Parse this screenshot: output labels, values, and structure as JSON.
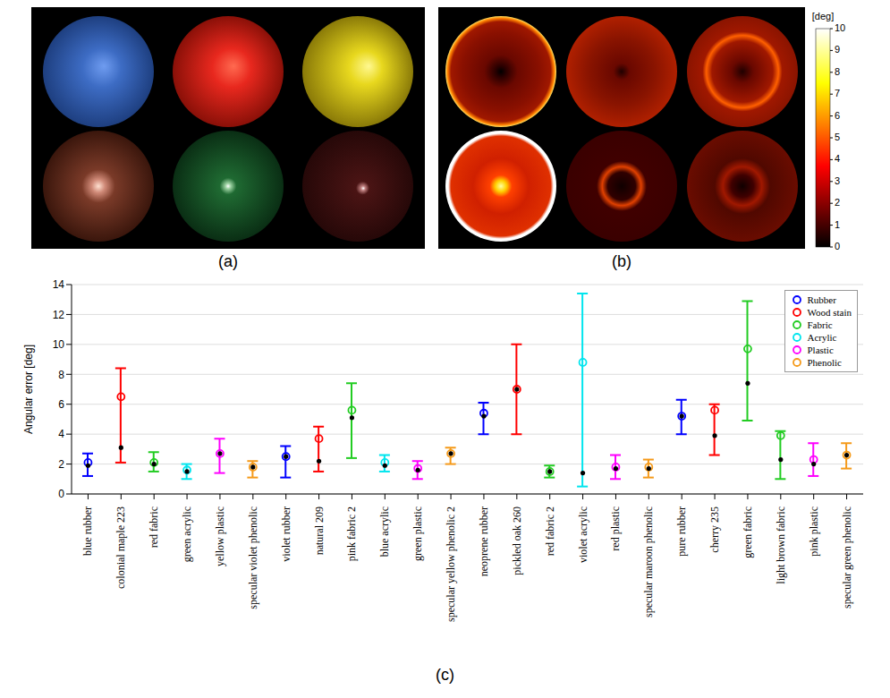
{
  "panel_labels": [
    "(a)",
    "(b)",
    "(c)"
  ],
  "colorbar": {
    "title": "[deg]",
    "range": [
      0,
      10
    ],
    "ticks": [
      0,
      1,
      2,
      3,
      4,
      5,
      6,
      7,
      8,
      9,
      10
    ]
  },
  "chart_data": {
    "type": "scatter",
    "y_label": "Angular error [deg]",
    "categories": [
      "blue rubber",
      "colonial maple 223",
      "red fabric",
      "green acrylic",
      "yellow plastic",
      "specular violet phenolic",
      "violet rubber",
      "natural 209",
      "pink fabric 2",
      "blue acrylic",
      "green plastic",
      "specular yellow phenolic 2",
      "neoprene rubber",
      "pickled oak 260",
      "red fabric 2",
      "violet acrylic",
      "red plastic",
      "specular maroon phenolic",
      "pure rubber",
      "cherry 235",
      "green fabric",
      "light brown fabric",
      "pink plastic",
      "specular green phenolic"
    ],
    "ylim": [
      0,
      14
    ],
    "yticks": [
      0,
      2,
      4,
      6,
      8,
      10,
      12,
      14
    ],
    "grid": true,
    "legend": "top-right",
    "series": [
      {
        "name": "Rubber",
        "color": "#0000ff",
        "values": [
          2.1,
          null,
          null,
          null,
          null,
          null,
          2.5,
          null,
          null,
          null,
          null,
          null,
          5.4,
          null,
          null,
          null,
          null,
          null,
          5.2,
          null,
          null,
          null,
          null,
          null
        ],
        "dot_values": [
          1.9,
          null,
          null,
          null,
          null,
          null,
          2.5,
          null,
          null,
          null,
          null,
          null,
          5.2,
          null,
          null,
          null,
          null,
          null,
          5.2,
          null,
          null,
          null,
          null,
          null
        ],
        "lows": [
          1.2,
          null,
          null,
          null,
          null,
          null,
          1.1,
          null,
          null,
          null,
          null,
          null,
          4.0,
          null,
          null,
          null,
          null,
          null,
          4.0,
          null,
          null,
          null,
          null,
          null
        ],
        "highs": [
          2.7,
          null,
          null,
          null,
          null,
          null,
          3.2,
          null,
          null,
          null,
          null,
          null,
          6.1,
          null,
          null,
          null,
          null,
          null,
          6.3,
          null,
          null,
          null,
          null,
          null
        ]
      },
      {
        "name": "Wood stain",
        "color": "#ff0000",
        "values": [
          null,
          6.5,
          null,
          null,
          null,
          null,
          null,
          3.7,
          null,
          null,
          null,
          null,
          null,
          7.0,
          null,
          null,
          null,
          null,
          null,
          5.6,
          null,
          null,
          null,
          null
        ],
        "dot_values": [
          null,
          3.1,
          null,
          null,
          null,
          null,
          null,
          2.2,
          null,
          null,
          null,
          null,
          null,
          7.0,
          null,
          null,
          null,
          null,
          null,
          3.9,
          null,
          null,
          null,
          null
        ],
        "lows": [
          null,
          2.1,
          null,
          null,
          null,
          null,
          null,
          1.5,
          null,
          null,
          null,
          null,
          null,
          4.0,
          null,
          null,
          null,
          null,
          null,
          2.6,
          null,
          null,
          null,
          null
        ],
        "highs": [
          null,
          8.4,
          null,
          null,
          null,
          null,
          null,
          4.5,
          null,
          null,
          null,
          null,
          null,
          10.0,
          null,
          null,
          null,
          null,
          null,
          6.0,
          null,
          null,
          null,
          null
        ]
      },
      {
        "name": "Fabric",
        "color": "#22cc22",
        "values": [
          null,
          null,
          2.1,
          null,
          null,
          null,
          null,
          null,
          5.6,
          null,
          null,
          null,
          null,
          null,
          1.5,
          null,
          null,
          null,
          null,
          null,
          9.7,
          3.9,
          null,
          null
        ],
        "dot_values": [
          null,
          null,
          2.0,
          null,
          null,
          null,
          null,
          null,
          5.1,
          null,
          null,
          null,
          null,
          null,
          1.5,
          null,
          null,
          null,
          null,
          null,
          7.4,
          2.3,
          null,
          null
        ],
        "lows": [
          null,
          null,
          1.5,
          null,
          null,
          null,
          null,
          null,
          2.4,
          null,
          null,
          null,
          null,
          null,
          1.1,
          null,
          null,
          null,
          null,
          null,
          4.9,
          1.0,
          null,
          null
        ],
        "highs": [
          null,
          null,
          2.8,
          null,
          null,
          null,
          null,
          null,
          7.4,
          null,
          null,
          null,
          null,
          null,
          1.9,
          null,
          null,
          null,
          null,
          null,
          12.9,
          4.2,
          null,
          null
        ]
      },
      {
        "name": "Acrylic",
        "color": "#00e5ee",
        "values": [
          null,
          null,
          null,
          1.6,
          null,
          null,
          null,
          null,
          null,
          2.1,
          null,
          null,
          null,
          null,
          null,
          8.8,
          null,
          null,
          null,
          null,
          null,
          null,
          null,
          null
        ],
        "dot_values": [
          null,
          null,
          null,
          1.5,
          null,
          null,
          null,
          null,
          null,
          1.9,
          null,
          null,
          null,
          null,
          null,
          1.4,
          null,
          null,
          null,
          null,
          null,
          null,
          null,
          null
        ],
        "lows": [
          null,
          null,
          null,
          1.0,
          null,
          null,
          null,
          null,
          null,
          1.5,
          null,
          null,
          null,
          null,
          null,
          0.5,
          null,
          null,
          null,
          null,
          null,
          null,
          null,
          null
        ],
        "highs": [
          null,
          null,
          null,
          2.0,
          null,
          null,
          null,
          null,
          null,
          2.6,
          null,
          null,
          null,
          null,
          null,
          13.4,
          null,
          null,
          null,
          null,
          null,
          null,
          null,
          null
        ]
      },
      {
        "name": "Plastic",
        "color": "#ff00ff",
        "values": [
          null,
          null,
          null,
          null,
          2.7,
          null,
          null,
          null,
          null,
          null,
          1.7,
          null,
          null,
          null,
          null,
          null,
          1.8,
          null,
          null,
          null,
          null,
          null,
          2.3,
          null
        ],
        "dot_values": [
          null,
          null,
          null,
          null,
          2.7,
          null,
          null,
          null,
          null,
          null,
          1.6,
          null,
          null,
          null,
          null,
          null,
          1.7,
          null,
          null,
          null,
          null,
          null,
          2.0,
          null
        ],
        "lows": [
          null,
          null,
          null,
          null,
          1.4,
          null,
          null,
          null,
          null,
          null,
          1.0,
          null,
          null,
          null,
          null,
          null,
          1.0,
          null,
          null,
          null,
          null,
          null,
          1.2,
          null
        ],
        "highs": [
          null,
          null,
          null,
          null,
          3.7,
          null,
          null,
          null,
          null,
          null,
          2.2,
          null,
          null,
          null,
          null,
          null,
          2.6,
          null,
          null,
          null,
          null,
          null,
          3.4,
          null
        ]
      },
      {
        "name": "Phenolic",
        "color": "#f59a1a",
        "values": [
          null,
          null,
          null,
          null,
          null,
          1.8,
          null,
          null,
          null,
          null,
          null,
          2.7,
          null,
          null,
          null,
          null,
          null,
          1.8,
          null,
          null,
          null,
          null,
          null,
          2.6
        ],
        "dot_values": [
          null,
          null,
          null,
          null,
          null,
          1.8,
          null,
          null,
          null,
          null,
          null,
          2.7,
          null,
          null,
          null,
          null,
          null,
          1.7,
          null,
          null,
          null,
          null,
          null,
          2.6
        ],
        "lows": [
          null,
          null,
          null,
          null,
          null,
          1.1,
          null,
          null,
          null,
          null,
          null,
          2.0,
          null,
          null,
          null,
          null,
          null,
          1.1,
          null,
          null,
          null,
          null,
          null,
          1.7
        ],
        "highs": [
          null,
          null,
          null,
          null,
          null,
          2.2,
          null,
          null,
          null,
          null,
          null,
          3.1,
          null,
          null,
          null,
          null,
          null,
          2.3,
          null,
          null,
          null,
          null,
          null,
          3.4
        ]
      }
    ]
  }
}
